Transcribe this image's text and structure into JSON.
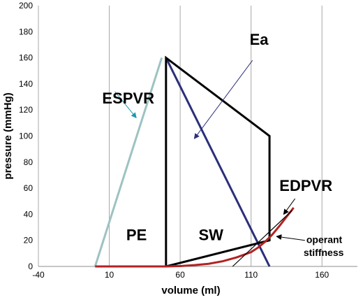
{
  "chart_data": {
    "type": "line",
    "xlabel": "volume (ml)",
    "ylabel": "pressure  (mmHg)",
    "xlim": [
      -40,
      185
    ],
    "ylim": [
      0,
      200
    ],
    "x_ticks": [
      -40,
      10,
      60,
      110,
      160
    ],
    "y_ticks": [
      0,
      20,
      40,
      60,
      80,
      100,
      120,
      140,
      160,
      180,
      200
    ],
    "grid": "vertical",
    "series": [
      {
        "name": "ESPVR",
        "color": "#9cc3c1",
        "x": [
          0,
          47
        ],
        "y": [
          0,
          160
        ]
      },
      {
        "name": "Ea",
        "color": "#2b2f7a",
        "x": [
          50,
          123
        ],
        "y": [
          160,
          0
        ]
      },
      {
        "name": "",
        "color": "#000000",
        "x": [
          50,
          50,
          123,
          123,
          50
        ],
        "y": [
          0,
          160,
          100,
          20,
          0
        ]
      },
      {
        "name": "EDPVR",
        "color": "#b22222",
        "x": [
          0,
          50,
          60,
          70,
          80,
          90,
          100,
          110,
          115,
          120,
          125,
          130,
          135,
          140
        ],
        "y": [
          0,
          0,
          0.3,
          1,
          2,
          4,
          7,
          11,
          14.5,
          19,
          24.5,
          31,
          38,
          45
        ]
      },
      {
        "name": "operant stiffness",
        "color": "#000000",
        "x": [
          97,
          139
        ],
        "y": [
          0,
          43
        ]
      }
    ],
    "annotations": [
      {
        "text": "ESPVR",
        "x": 5,
        "y": 125
      },
      {
        "text": "Ea",
        "x": 109,
        "y": 170
      },
      {
        "text": "EDPVR",
        "x": 130,
        "y": 58
      },
      {
        "text": "PE",
        "x": 22,
        "y": 20
      },
      {
        "text": "SW",
        "x": 73,
        "y": 20
      },
      {
        "text": "operant",
        "x": 149,
        "y": 18
      },
      {
        "text": "stiffness",
        "x": 147,
        "y": 8
      }
    ],
    "annotation_arrows": [
      {
        "from": [
          14,
          134
        ],
        "to": [
          29,
          114
        ],
        "color": "#1a9ab0"
      },
      {
        "from": [
          111,
          158
        ],
        "to": [
          70,
          98
        ],
        "color": "#2b2f7a"
      },
      {
        "from": [
          141,
          52
        ],
        "to": [
          133,
          40
        ],
        "color": "#000000"
      },
      {
        "from": [
          148,
          20
        ],
        "to": [
          128,
          23
        ],
        "color": "#000000"
      }
    ]
  }
}
